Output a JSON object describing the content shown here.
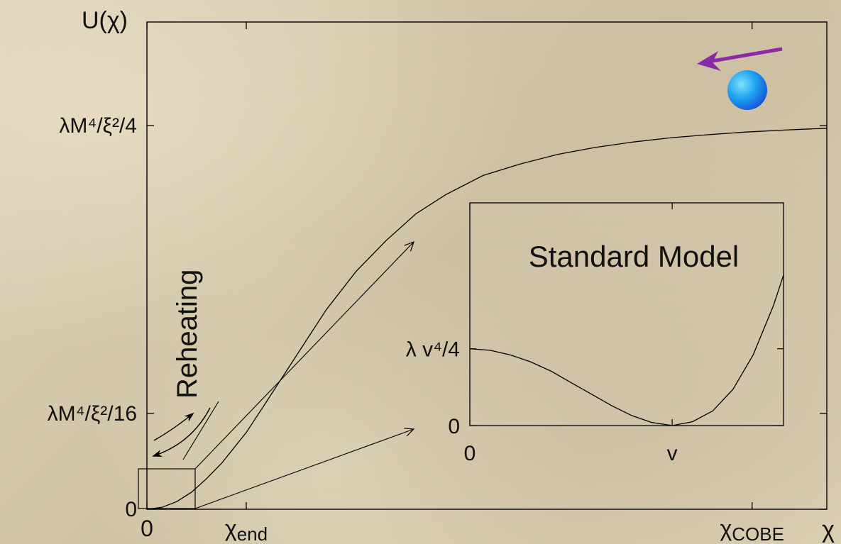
{
  "chart_data": {
    "type": "line",
    "title": "",
    "ylabel": "U(χ)",
    "xlabel": "χ",
    "x_ticks": [
      {
        "label": "0",
        "sub": ""
      },
      {
        "label": "χ",
        "sub": "end"
      },
      {
        "label": "χ",
        "sub": "COBE"
      }
    ],
    "y_ticks": [
      {
        "label": "0",
        "sup_parts": []
      },
      {
        "label": "λM⁴/ξ²/16"
      },
      {
        "label": "λM⁴/ξ²/4"
      }
    ],
    "y_tick_values": [
      0,
      0.25,
      1
    ],
    "x_tick_values": [
      0,
      1.33,
      8.1
    ],
    "xlim": [
      0,
      9.1
    ],
    "ylim": [
      0,
      1.27
    ],
    "series": [
      {
        "x": [
          0,
          0.2,
          0.4,
          0.6,
          0.8,
          1.0,
          1.33,
          1.6,
          2.0,
          2.4,
          2.8,
          3.2,
          3.6,
          4.0,
          4.5,
          5.0,
          5.5,
          6.0,
          6.5,
          7.0,
          7.5,
          8.0,
          8.5,
          9.1
        ],
        "y": [
          0,
          0.005,
          0.02,
          0.045,
          0.08,
          0.12,
          0.2,
          0.28,
          0.4,
          0.52,
          0.62,
          0.7,
          0.77,
          0.82,
          0.87,
          0.9,
          0.925,
          0.943,
          0.957,
          0.968,
          0.976,
          0.983,
          0.988,
          0.993
        ]
      }
    ],
    "annotations": {
      "reheating": "Reheating"
    },
    "inset": {
      "type": "line",
      "title": "Standard Model",
      "x_ticks": [
        "0",
        "v"
      ],
      "y_ticks": [
        "0",
        "λ v⁴/4"
      ],
      "x_tick_values": [
        0,
        1
      ],
      "y_tick_values": [
        0,
        1
      ],
      "xlim": [
        0,
        1.55
      ],
      "ylim": [
        0,
        2.9
      ],
      "series": [
        {
          "x": [
            0,
            0.1,
            0.2,
            0.3,
            0.4,
            0.5,
            0.6,
            0.7,
            0.8,
            0.9,
            1.0,
            1.1,
            1.2,
            1.3,
            1.4,
            1.5,
            1.55
          ],
          "y": [
            1.0,
            0.98,
            0.92,
            0.83,
            0.71,
            0.56,
            0.41,
            0.26,
            0.13,
            0.04,
            0.0,
            0.05,
            0.19,
            0.47,
            0.92,
            1.56,
            1.96
          ]
        }
      ]
    }
  }
}
